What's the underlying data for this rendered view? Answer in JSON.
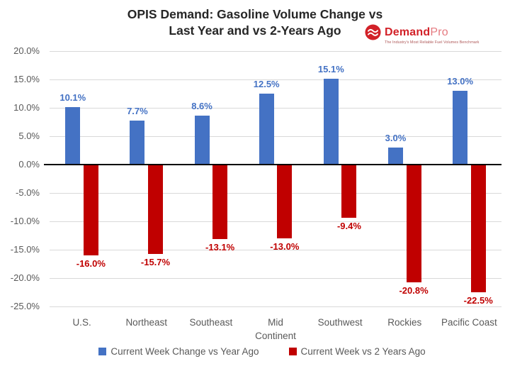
{
  "title": {
    "line1": "OPIS Demand: Gasoline Volume Change vs",
    "line2": "Last Year and vs 2-Years Ago"
  },
  "logo": {
    "brand_bold": "Demand",
    "brand_light": "Pro",
    "tagline": "The Industry's Most Reliable Fuel Volumes Benchmark",
    "icon": "waves-circle-icon",
    "brand_color": "#d22128"
  },
  "chart_data": {
    "type": "bar",
    "title": "OPIS Demand: Gasoline Volume Change vs Last Year and vs 2-Years Ago",
    "categories": [
      "U.S.",
      "Northeast",
      "Southeast",
      "Mid\nContinent",
      "Southwest",
      "Rockies",
      "Pacific Coast"
    ],
    "series": [
      {
        "name": "Current Week Change vs Year Ago",
        "color": "#4472c4",
        "values": [
          10.1,
          7.7,
          8.6,
          12.5,
          15.1,
          3.0,
          13.0
        ],
        "labels": [
          "10.1%",
          "7.7%",
          "8.6%",
          "12.5%",
          "15.1%",
          "3.0%",
          "13.0%"
        ]
      },
      {
        "name": "Current Week vs 2 Years Ago",
        "color": "#c00000",
        "values": [
          -16.0,
          -15.7,
          -13.1,
          -13.0,
          -9.4,
          -20.8,
          -22.5
        ],
        "labels": [
          "-16.0%",
          "-15.7%",
          "-13.1%",
          "-13.0%",
          "-9.4%",
          "-20.8%",
          "-22.5%"
        ]
      }
    ],
    "y_axis": {
      "min": -25,
      "max": 20,
      "step": 5,
      "tick_labels": [
        "20.0%",
        "15.0%",
        "10.0%",
        "5.0%",
        "0.0%",
        "-5.0%",
        "-10.0%",
        "-15.0%",
        "-20.0%",
        "-25.0%"
      ]
    },
    "grid": true,
    "legend_position": "bottom",
    "colors": {
      "gridline": "#d9d9d9",
      "zero_line": "#000000",
      "axis_text": "#595959",
      "title_text": "#262626"
    }
  }
}
